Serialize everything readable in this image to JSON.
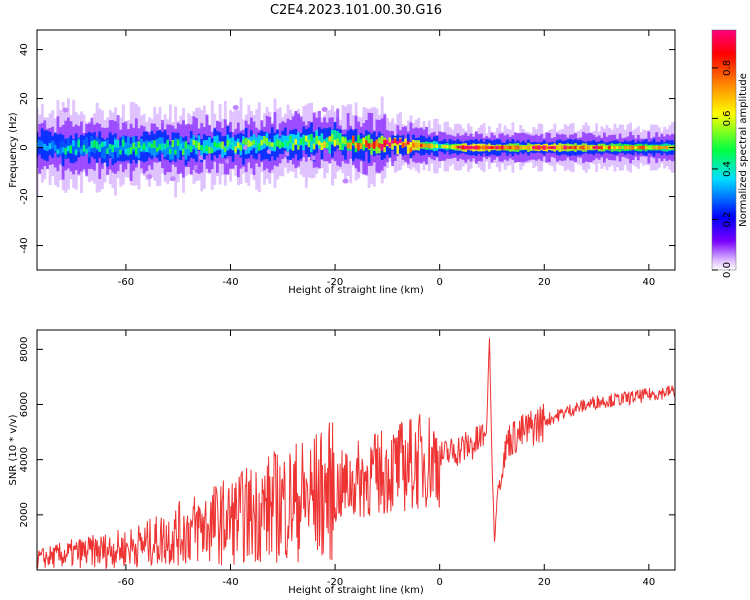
{
  "chart_data": [
    {
      "type": "heatmap",
      "title": "C2E4.2023.101.00.30.G16",
      "xlabel": "Height of straight line (km)",
      "ylabel": "Frequency (Hz)",
      "xlim": [
        -77,
        45
      ],
      "ylim": [
        -50,
        48
      ],
      "x_ticks": [
        -60,
        -40,
        -20,
        0,
        20,
        40
      ],
      "y_ticks": [
        -40,
        -20,
        0,
        20,
        40
      ],
      "grid": false,
      "colorbar": {
        "label": "Normalized spectral amplitude",
        "range": [
          0,
          0.95
        ],
        "ticks": [
          0.0,
          0.2,
          0.4,
          0.6,
          0.8
        ],
        "colormap": [
          "#ffffff",
          "#dcbcff",
          "#7a00ff",
          "#0000ff",
          "#00e0ff",
          "#00ff40",
          "#ffff00",
          "#ff8000",
          "#ff0000",
          "#ff0080"
        ]
      },
      "description_values": {
        "x": [
          -75,
          -70,
          -65,
          -60,
          -55,
          -50,
          -45,
          -40,
          -35,
          -30,
          -25,
          -20,
          -15,
          -10,
          -5,
          0,
          5,
          10,
          15,
          20,
          25,
          30,
          35,
          40,
          44
        ],
        "center_frequency": [
          0,
          0,
          0,
          0,
          0,
          0,
          0.5,
          0.8,
          1.2,
          1.8,
          2.2,
          2.5,
          1.5,
          1.2,
          1.0,
          0.5,
          0,
          0,
          0,
          0,
          0,
          0,
          0,
          0,
          0
        ],
        "peak_amplitude": [
          0.35,
          0.4,
          0.4,
          0.45,
          0.45,
          0.45,
          0.5,
          0.5,
          0.5,
          0.5,
          0.55,
          0.6,
          0.7,
          0.85,
          0.9,
          0.5,
          0.9,
          0.85,
          0.75,
          0.9,
          0.8,
          0.8,
          0.7,
          0.7,
          0.6
        ]
      }
    },
    {
      "type": "line",
      "title": "",
      "xlabel": "Height of straight line (km)",
      "ylabel": "SNR (10 * v/v)",
      "xlim": [
        -77,
        45
      ],
      "ylim": [
        0,
        8700
      ],
      "x_ticks": [
        -60,
        -40,
        -20,
        0,
        20,
        40
      ],
      "y_ticks": [
        2000,
        4000,
        6000,
        8000
      ],
      "grid": false,
      "series": [
        {
          "color": "#ee3333",
          "x": [
            -77,
            -70,
            -65,
            -60,
            -55,
            -50,
            -45,
            -40,
            -35,
            -30,
            -25,
            -20,
            -15,
            -10,
            -5,
            0,
            4,
            7,
            9,
            9.5,
            10,
            10.5,
            11,
            13,
            16,
            20,
            25,
            30,
            35,
            40,
            45
          ],
          "y": [
            400,
            600,
            700,
            800,
            1000,
            1300,
            1600,
            1800,
            2100,
            2400,
            2600,
            2900,
            3300,
            3600,
            3900,
            4100,
            4400,
            4600,
            5000,
            8600,
            4000,
            1000,
            2800,
            4700,
            5000,
            5400,
            5800,
            6100,
            6200,
            6350,
            6500
          ]
        }
      ]
    }
  ]
}
